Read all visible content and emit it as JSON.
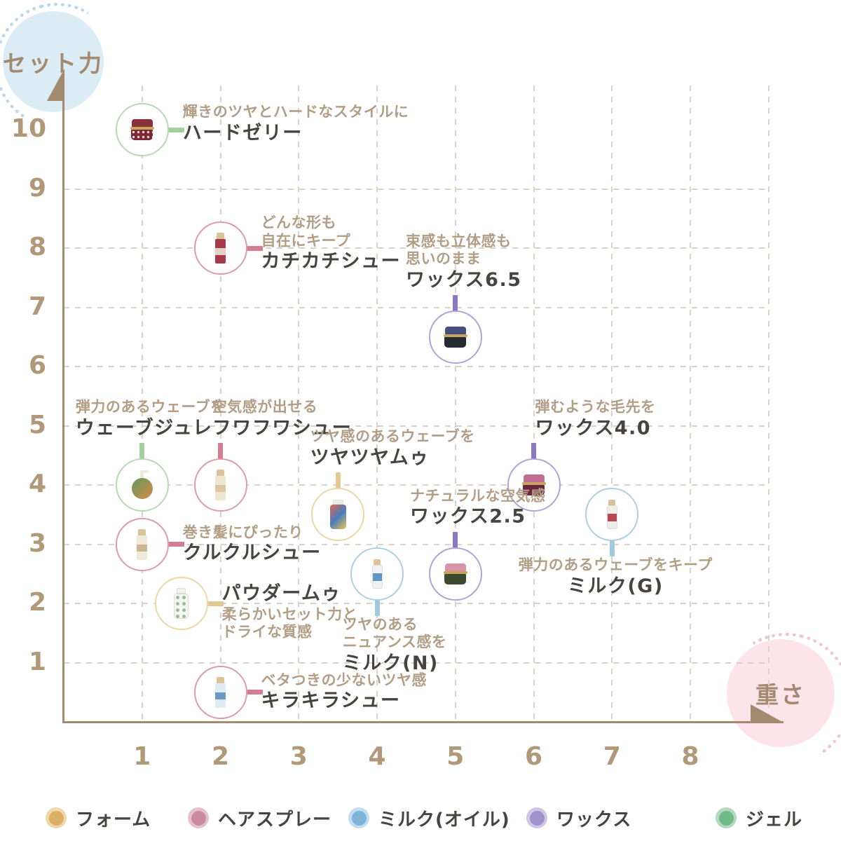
{
  "chart_data": {
    "type": "scatter",
    "title": "",
    "xlabel": "重さ",
    "ylabel": "セット力",
    "xlim": [
      0,
      8.5
    ],
    "ylim": [
      0,
      10.5
    ],
    "x_ticks": [
      1,
      2,
      3,
      4,
      5,
      6,
      7,
      8
    ],
    "y_ticks": [
      10,
      9,
      8,
      7,
      6,
      5,
      4,
      3,
      2,
      1
    ],
    "grid": "dashed",
    "legend_position": "bottom",
    "legend": [
      {
        "id": "foam",
        "label": "フォーム",
        "dot": "#dcae62",
        "ring": "#eed8ac"
      },
      {
        "id": "hairspray",
        "label": "ヘアスプレー",
        "dot": "#ca8ba0",
        "ring": "#e6c1cc"
      },
      {
        "id": "milk",
        "label": "ミルク(オイル)",
        "dot": "#7db4d8",
        "ring": "#c3dcee"
      },
      {
        "id": "wax",
        "label": "ワックス",
        "dot": "#a292cc",
        "ring": "#cfc5e5"
      },
      {
        "id": "gel",
        "label": "ジェル",
        "dot": "#6fba88",
        "ring": "#b4d9bf"
      }
    ],
    "category_colors": {
      "foam": {
        "border": "#ebd7a8",
        "connector": "#e3c991"
      },
      "hairspray": {
        "border": "#dc9cab",
        "connector": "#d27d92"
      },
      "milk": {
        "border": "#abd0e4",
        "connector": "#a0cade"
      },
      "wax": {
        "border": "#b1a3d8",
        "connector": "#8d77c2"
      },
      "gel": {
        "border": "#b7dab2",
        "connector": "#a4cf9e"
      }
    },
    "points": [
      {
        "id": "hard-jelly",
        "name": "ハードゼリー",
        "desc": [
          "輝きのツヤとハードなスタイルに"
        ],
        "category": "gel",
        "x": 1,
        "y": 10,
        "label": {
          "pos": "right",
          "dy": -8,
          "align": "left"
        },
        "icon": {
          "shape": "jar",
          "lid": "#8a3038",
          "rim": "#caa45e",
          "body": [
            "#7e2a34"
          ],
          "dots": true
        }
      },
      {
        "id": "kachikachi-shoe",
        "name": "カチカチシュー",
        "desc": [
          "どんな形も",
          "自在にキープ"
        ],
        "category": "hairspray",
        "x": 2,
        "y": 8,
        "label": {
          "pos": "right",
          "dy": -6,
          "align": "left"
        },
        "icon": {
          "shape": "spray",
          "cap": "#d9c49a",
          "body": [
            "#a63a4a"
          ],
          "accent": "#ece2d2"
        }
      },
      {
        "id": "wax-6-5",
        "name": "ワックス6.5",
        "desc": [
          "束感も立体感も",
          "思いのまま"
        ],
        "category": "wax",
        "x": 5,
        "y": 6.5,
        "label": {
          "pos": "above",
          "dx": 12,
          "align": "left"
        },
        "icon": {
          "shape": "jar",
          "lid": "#45507e",
          "rim": "#caa45e",
          "body": [
            "#262a33"
          ]
        }
      },
      {
        "id": "wave-jule",
        "name": "ウェーブジュレ",
        "desc": [
          "弾力のあるウェーブを"
        ],
        "category": "gel",
        "x": 1,
        "y": 4,
        "label": {
          "pos": "above",
          "dx": 12,
          "align": "left"
        },
        "icon": {
          "shape": "pump",
          "cap": "#eceadf",
          "body": [
            "#5f9a5c",
            "#d98a4a"
          ]
        }
      },
      {
        "id": "fuwafuwa-shoe",
        "name": "フワフワシュー",
        "desc": [
          "空気感が出せる"
        ],
        "category": "hairspray",
        "x": 2,
        "y": 4,
        "label": {
          "pos": "above",
          "dx": 88,
          "align": "left"
        },
        "icon": {
          "shape": "spray",
          "cap": "#d9c49a",
          "body": [
            "#efe6cf"
          ],
          "accent": "#d9c49a"
        }
      },
      {
        "id": "tsuyatsuya-mou",
        "name": "ツヤツヤムゥ",
        "desc": [
          "ツヤ感のあるウェーブを"
        ],
        "category": "foam",
        "x": 3.5,
        "y": 3.5,
        "label": {
          "pos": "above",
          "dx": 78,
          "align": "left"
        },
        "icon": {
          "shape": "mousse",
          "cap": "#efece2",
          "body": [
            "#e06a4e",
            "#4a7cc0",
            "#e8c44e"
          ]
        }
      },
      {
        "id": "wax-4-0",
        "name": "ワックス4.0",
        "desc": [
          "弾むような毛先を"
        ],
        "category": "wax",
        "x": 6,
        "y": 4,
        "label": {
          "pos": "above",
          "dx": 88,
          "align": "left"
        },
        "icon": {
          "shape": "jar",
          "lid": "#c06e92",
          "rim": "#caa45e",
          "body": [
            "#69263f"
          ]
        }
      },
      {
        "id": "milk-g",
        "name": "ミルク(G)",
        "desc": [
          "弾力のあるウェーブをキープ"
        ],
        "category": "milk",
        "x": 7,
        "y": 3.5,
        "label": {
          "pos": "below",
          "dx": 5,
          "align": "center"
        },
        "icon": {
          "shape": "bottle",
          "cap": "#d9c49a",
          "body": [
            "#f0ece6"
          ],
          "accent": "#b03644"
        }
      },
      {
        "id": "kurukuru-shoe",
        "name": "クルクルシュー",
        "desc": [
          "巻き髪にぴったり"
        ],
        "category": "hairspray",
        "x": 1,
        "y": 3,
        "label": {
          "pos": "right",
          "dy": 0,
          "align": "left"
        },
        "icon": {
          "shape": "spray",
          "cap": "#d9c49a",
          "body": [
            "#efeada"
          ],
          "accent": "#c8b088"
        }
      },
      {
        "id": "wax-2-5",
        "name": "ワックス2.5",
        "desc": [
          "ナチュラルな空気感"
        ],
        "category": "wax",
        "x": 5,
        "y": 2.5,
        "label": {
          "pos": "above",
          "dx": 32,
          "align": "left"
        },
        "icon": {
          "shape": "jar",
          "lid": "#d893a8",
          "rim": "#caa45e",
          "body": [
            "#3c4a30"
          ]
        }
      },
      {
        "id": "milk-n",
        "name": "ミルク(N)",
        "desc": [
          "ツヤのある",
          "ニュアンス感を"
        ],
        "category": "milk",
        "x": 4,
        "y": 2.5,
        "label": {
          "pos": "below",
          "dx": 25,
          "align": "left"
        },
        "icon": {
          "shape": "bottle",
          "cap": "#d9c49a",
          "body": [
            "#eef2f6"
          ],
          "accent": "#4e8ec2"
        }
      },
      {
        "id": "powder-mou",
        "name": "パウダームゥ",
        "desc": [
          "柔らかいセット力と",
          "ドライな質感"
        ],
        "category": "foam",
        "x": 1.5,
        "y": 2,
        "label": {
          "pos": "right",
          "dy": 12,
          "align": "left",
          "name_first": true
        },
        "icon": {
          "shape": "widebottle",
          "cap": "#f4f2ec",
          "body": [
            "#f4f4f0"
          ],
          "accent": "#8fbf92"
        }
      },
      {
        "id": "kirakira-shoe",
        "name": "キラキラシュー",
        "desc": [
          "ベタつきの少ないツヤ感"
        ],
        "category": "hairspray",
        "x": 2,
        "y": 0.5,
        "label": {
          "pos": "right",
          "dy": 0,
          "align": "left"
        },
        "icon": {
          "shape": "spray",
          "cap": "#d9c49a",
          "body": [
            "#dfeaf3"
          ],
          "accent": "#5e90c0"
        }
      }
    ]
  },
  "colors": {
    "axis": "#a18a6f",
    "tick_text": "#b09878",
    "desc_text": "#b29d85",
    "name_text": "#474440",
    "grid": "#d9d3ca",
    "background": "#ffffff",
    "y_badge_bg": "#dcecf4",
    "y_badge_dots": "#b9d9e8",
    "x_badge_bg": "#fce4ea",
    "x_badge_dots": "#f2c5d2"
  }
}
